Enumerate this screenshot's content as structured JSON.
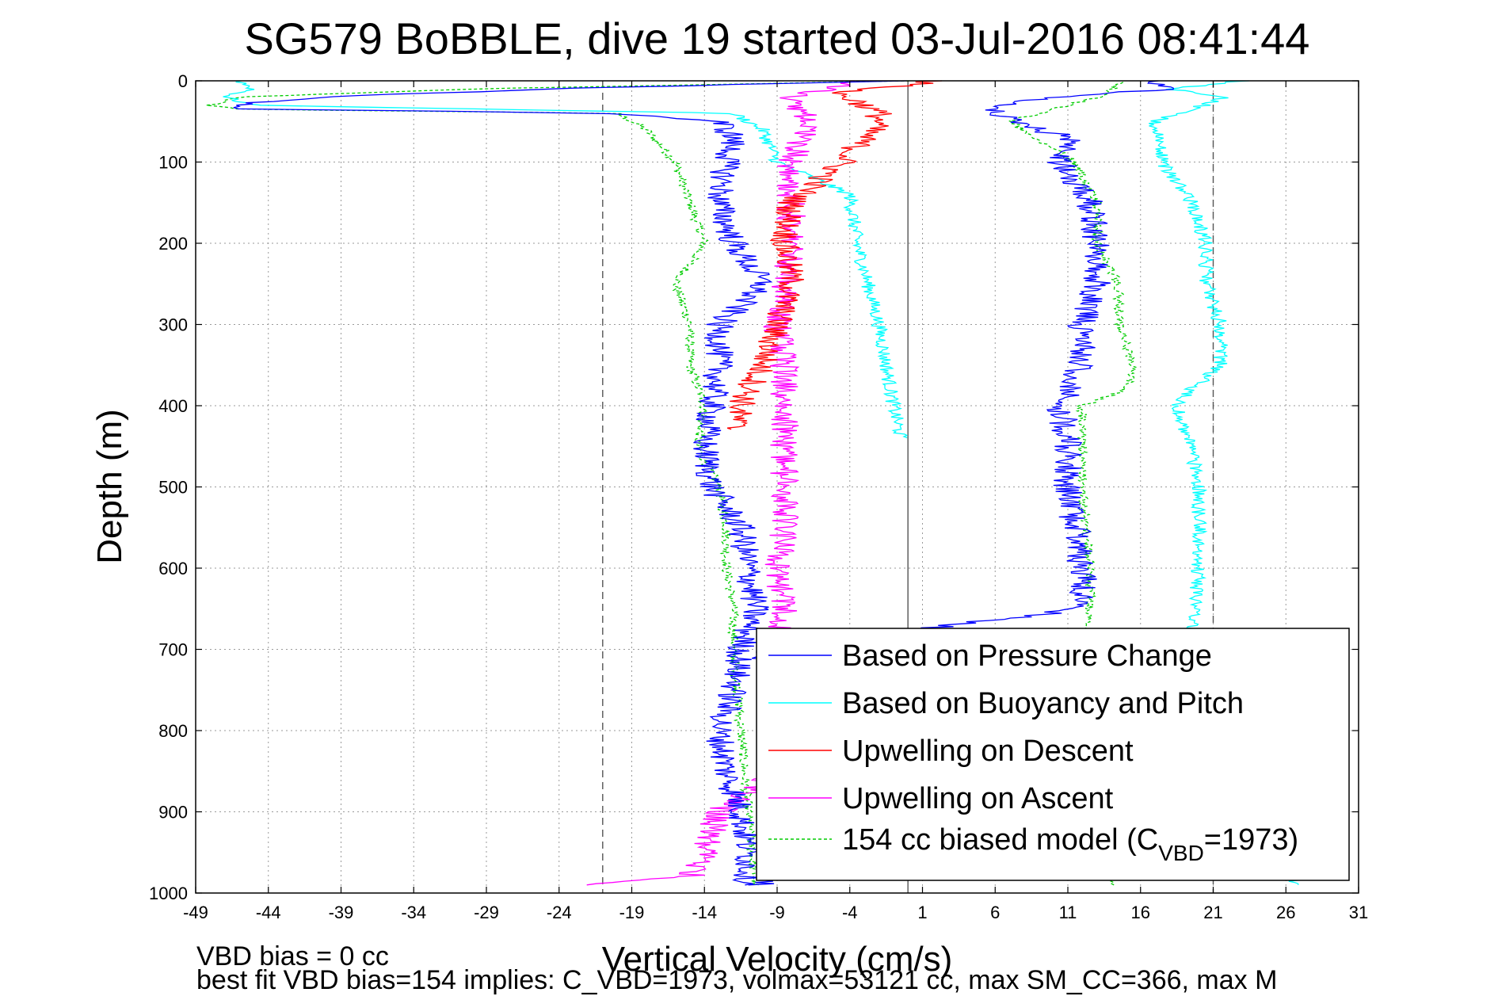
{
  "chart_data": {
    "type": "line",
    "title": "SG579 BoBBLE, dive 19 started 03-Jul-2016 08:41:44",
    "xlabel": "Vertical Velocity (cm/s)",
    "ylabel": "Depth (m)",
    "xlim": [
      -49,
      31
    ],
    "ylim": [
      0,
      1000
    ],
    "y_inverted": true,
    "grid": true,
    "x_ticks": [
      "-49",
      "-44",
      "-39",
      "-34",
      "-29",
      "-24",
      "-19",
      "-14",
      "-9",
      "-4",
      "1",
      "6",
      "11",
      "16",
      "21",
      "26",
      "31"
    ],
    "y_ticks": [
      "0",
      "100",
      "200",
      "300",
      "400",
      "500",
      "600",
      "700",
      "800",
      "900",
      "1000"
    ],
    "legend_position": "bottom-right",
    "reference_lines": [
      {
        "x": -21,
        "style": "dashed"
      },
      {
        "x": 0,
        "style": "solid"
      },
      {
        "x": 21,
        "style": "dashed"
      }
    ],
    "series": [
      {
        "name": "Based on Pressure Change",
        "color": "#0000ff",
        "style": "solid",
        "descent": {
          "depth": [
            0,
            10,
            20,
            30,
            35,
            40,
            50,
            70,
            100,
            150,
            200,
            250,
            300,
            350,
            400,
            450,
            500,
            550,
            600,
            650,
            700,
            750,
            800,
            850,
            900,
            950,
            990
          ],
          "velocity": [
            0,
            -25,
            -40,
            -47,
            -45,
            -20,
            -13,
            -12,
            -12.5,
            -13,
            -12,
            -10,
            -13,
            -13,
            -13.5,
            -14,
            -13.5,
            -11.5,
            -11,
            -10.5,
            -11.5,
            -12,
            -13,
            -12.5,
            -11.5,
            -11,
            -11
          ]
        },
        "ascent": {
          "depth": [
            990,
            950,
            900,
            850,
            800,
            750,
            700,
            650,
            600,
            550,
            500,
            450,
            400,
            350,
            300,
            250,
            200,
            150,
            100,
            70,
            50,
            30,
            20,
            10,
            0
          ],
          "velocity": [
            -10,
            -9,
            -8.5,
            -8,
            -8,
            -9,
            -10,
            12,
            12,
            11.5,
            11,
            11,
            10.5,
            12,
            12,
            13,
            13,
            12.5,
            10.5,
            11,
            7,
            6,
            10,
            18,
            17
          ]
        }
      },
      {
        "name": "Based on Buoyancy and Pitch",
        "color": "#00ffff",
        "style": "solid",
        "descent": {
          "depth": [
            0,
            10,
            20,
            30,
            40,
            60,
            100,
            140,
            200,
            300,
            400,
            440
          ],
          "velocity": [
            -46,
            -45,
            -47,
            -45,
            -12,
            -10,
            -9,
            -4,
            -3.5,
            -2,
            -1,
            -0.5
          ]
        },
        "ascent": {
          "depth": [
            990,
            900,
            800,
            700,
            600,
            500,
            450,
            400,
            380,
            350,
            300,
            250,
            200,
            150,
            100,
            50,
            20,
            10,
            0
          ],
          "velocity": [
            27,
            20.5,
            20.5,
            19.5,
            20,
            20,
            19.5,
            18.5,
            19.5,
            21.5,
            21.5,
            20.5,
            20.5,
            19.5,
            17.5,
            17,
            22,
            18,
            23
          ]
        }
      },
      {
        "name": "Upwelling on Descent",
        "color": "#ff0000",
        "style": "solid",
        "depth": [
          0,
          5,
          15,
          25,
          40,
          50,
          70,
          100,
          150,
          200,
          250,
          300,
          350,
          400,
          430
        ],
        "velocity": [
          2,
          0,
          -5,
          -3.5,
          -2,
          -2,
          -3,
          -4.5,
          -8,
          -8.5,
          -8,
          -9,
          -10,
          -11.5,
          -12
        ]
      },
      {
        "name": "Upwelling on Ascent",
        "color": "#ff00ff",
        "style": "solid",
        "depth": [
          990,
          980,
          950,
          900,
          850,
          800,
          750,
          700,
          650,
          600,
          550,
          500,
          450,
          400,
          350,
          300,
          250,
          200,
          150,
          100,
          50,
          20,
          10,
          0
        ],
        "velocity": [
          -23,
          -15,
          -14,
          -13,
          -9,
          -9,
          -9,
          -9,
          -8.5,
          -9,
          -8.5,
          -8.5,
          -8.5,
          -8.5,
          -8.5,
          -9,
          -8.5,
          -8,
          -8,
          -8,
          -7,
          -8,
          -5.5,
          -3
        ]
      },
      {
        "name": "154 cc biased model (C",
        "name_sub": "VBD",
        "name_suffix": "=1973)",
        "color": "#00cc00",
        "style": "dashed",
        "descent": {
          "depth": [
            0,
            10,
            20,
            30,
            35,
            40,
            60,
            100,
            150,
            200,
            250,
            300,
            350,
            400,
            450,
            500,
            550,
            600,
            650,
            700,
            800,
            900,
            990
          ],
          "velocity": [
            0,
            -30,
            -46,
            -48,
            -46,
            -20,
            -18,
            -16,
            -15,
            -14,
            -16,
            -15,
            -15,
            -14,
            -14.5,
            -13,
            -12.5,
            -12.5,
            -12,
            -12,
            -11.5,
            -11,
            -10.5
          ]
        },
        "ascent": {
          "depth": [
            990,
            900,
            800,
            700,
            650,
            600,
            500,
            450,
            400,
            380,
            350,
            300,
            250,
            200,
            150,
            100,
            50,
            20,
            0
          ],
          "velocity": [
            14,
            13,
            12.5,
            12.5,
            12.5,
            12.5,
            12,
            12,
            12,
            15,
            15.5,
            14.5,
            14.5,
            13,
            13,
            11.5,
            7,
            13,
            15
          ]
        }
      }
    ]
  },
  "notes": {
    "line1": "VBD bias = 0 cc",
    "line2": "best fit VBD bias=154 implies: C_VBD=1973, volmax=53121 cc, max SM_CC=366, max M"
  }
}
